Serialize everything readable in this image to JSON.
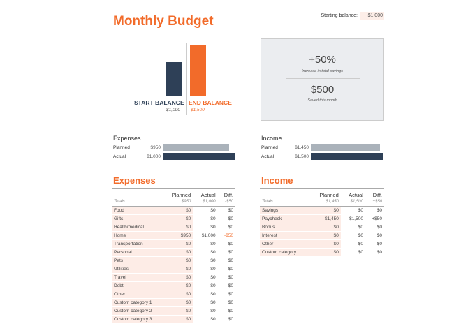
{
  "title": "Monthly Budget",
  "starting_balance": {
    "label": "Starting balance:",
    "value": "$1,000"
  },
  "balance_chart": {
    "start": {
      "label": "START BALANCE",
      "value": "$1,000",
      "amount": 1000,
      "color": "#2e4057"
    },
    "end": {
      "label": "END BALANCE",
      "value": "$1,500",
      "amount": 1500,
      "color": "#f26b2a"
    }
  },
  "summary": {
    "percent": "+50%",
    "percent_label": "Increase in total savings",
    "saved": "$500",
    "saved_label": "Saved this month"
  },
  "expenses_summary": {
    "title": "Expenses",
    "planned_label": "Planned",
    "planned": "$950",
    "planned_amount": 950,
    "actual_label": "Actual",
    "actual": "$1,000",
    "actual_amount": 1000
  },
  "income_summary": {
    "title": "Income",
    "planned_label": "Planned",
    "planned": "$1,450",
    "planned_amount": 1450,
    "actual_label": "Actual",
    "actual": "$1,500",
    "actual_amount": 1500
  },
  "expenses": {
    "title": "Expenses",
    "headers": [
      "Planned",
      "Actual",
      "Diff."
    ],
    "totals": [
      "Totals",
      "$950",
      "$1,000",
      "-$50"
    ],
    "rows": [
      [
        "Food",
        "$0",
        "$0",
        "$0"
      ],
      [
        "Gifts",
        "$0",
        "$0",
        "$0"
      ],
      [
        "Health/medical",
        "$0",
        "$0",
        "$0"
      ],
      [
        "Home",
        "$950",
        "$1,000",
        "-$50"
      ],
      [
        "Transportation",
        "$0",
        "$0",
        "$0"
      ],
      [
        "Personal",
        "$0",
        "$0",
        "$0"
      ],
      [
        "Pets",
        "$0",
        "$0",
        "$0"
      ],
      [
        "Utilities",
        "$0",
        "$0",
        "$0"
      ],
      [
        "Travel",
        "$0",
        "$0",
        "$0"
      ],
      [
        "Debt",
        "$0",
        "$0",
        "$0"
      ],
      [
        "Other",
        "$0",
        "$0",
        "$0"
      ],
      [
        "Custom category 1",
        "$0",
        "$0",
        "$0"
      ],
      [
        "Custom category 2",
        "$0",
        "$0",
        "$0"
      ],
      [
        "Custom category 3",
        "$0",
        "$0",
        "$0"
      ]
    ]
  },
  "income": {
    "title": "Income",
    "headers": [
      "Planned",
      "Actual",
      "Diff."
    ],
    "totals": [
      "Totals",
      "$1,450",
      "$1,500",
      "+$50"
    ],
    "rows": [
      [
        "Savings",
        "$0",
        "$0",
        "$0"
      ],
      [
        "Paycheck",
        "$1,450",
        "$1,500",
        "+$50"
      ],
      [
        "Bonus",
        "$0",
        "$0",
        "$0"
      ],
      [
        "Interest",
        "$0",
        "$0",
        "$0"
      ],
      [
        "Other",
        "$0",
        "$0",
        "$0"
      ],
      [
        "Custom category",
        "$0",
        "$0",
        "$0"
      ]
    ]
  }
}
